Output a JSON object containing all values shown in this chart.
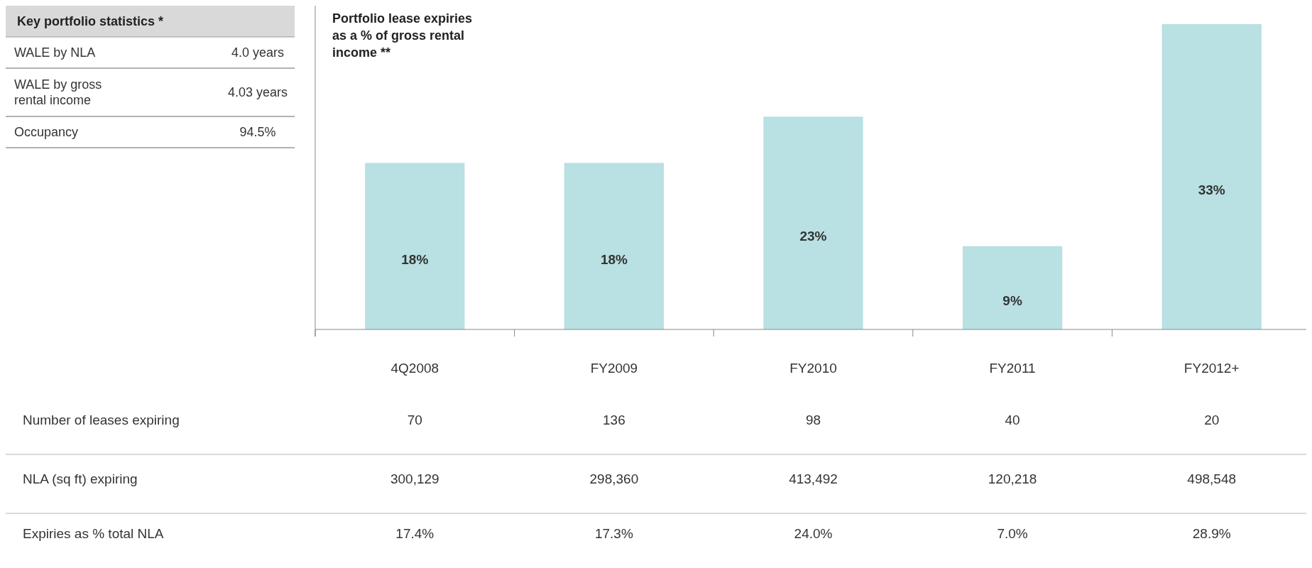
{
  "chart_data": [
    {
      "type": "other",
      "title": "Key portfolio statistics *",
      "categories": [
        "WALE by NLA",
        "WALE by gross rental income",
        "Occupancy"
      ],
      "value_labels": [
        "4.0 years",
        "4.03 years",
        "94.5%"
      ]
    },
    {
      "type": "bar",
      "title": "Portfolio lease expiries as a % of gross rental income **",
      "categories": [
        "4Q2008",
        "FY2009",
        "FY2010",
        "FY2011",
        "FY2012+"
      ],
      "values": [
        18,
        18,
        23,
        9,
        33
      ],
      "value_labels": [
        "18%",
        "18%",
        "23%",
        "9%",
        "33%"
      ],
      "color": "#b9e0e2"
    },
    {
      "type": "other",
      "annotations": [
        "Number of leases expiring",
        "70",
        "136",
        "98",
        "40",
        "20",
        "NLA (sq ft) expiring",
        "300,129",
        "298,360",
        "413,492",
        "120,218",
        "498,548",
        "Expiries as % total NLA",
        "17.4%",
        "17.3%",
        "24.0%",
        "7.0%",
        "28.9%"
      ]
    }
  ]
}
